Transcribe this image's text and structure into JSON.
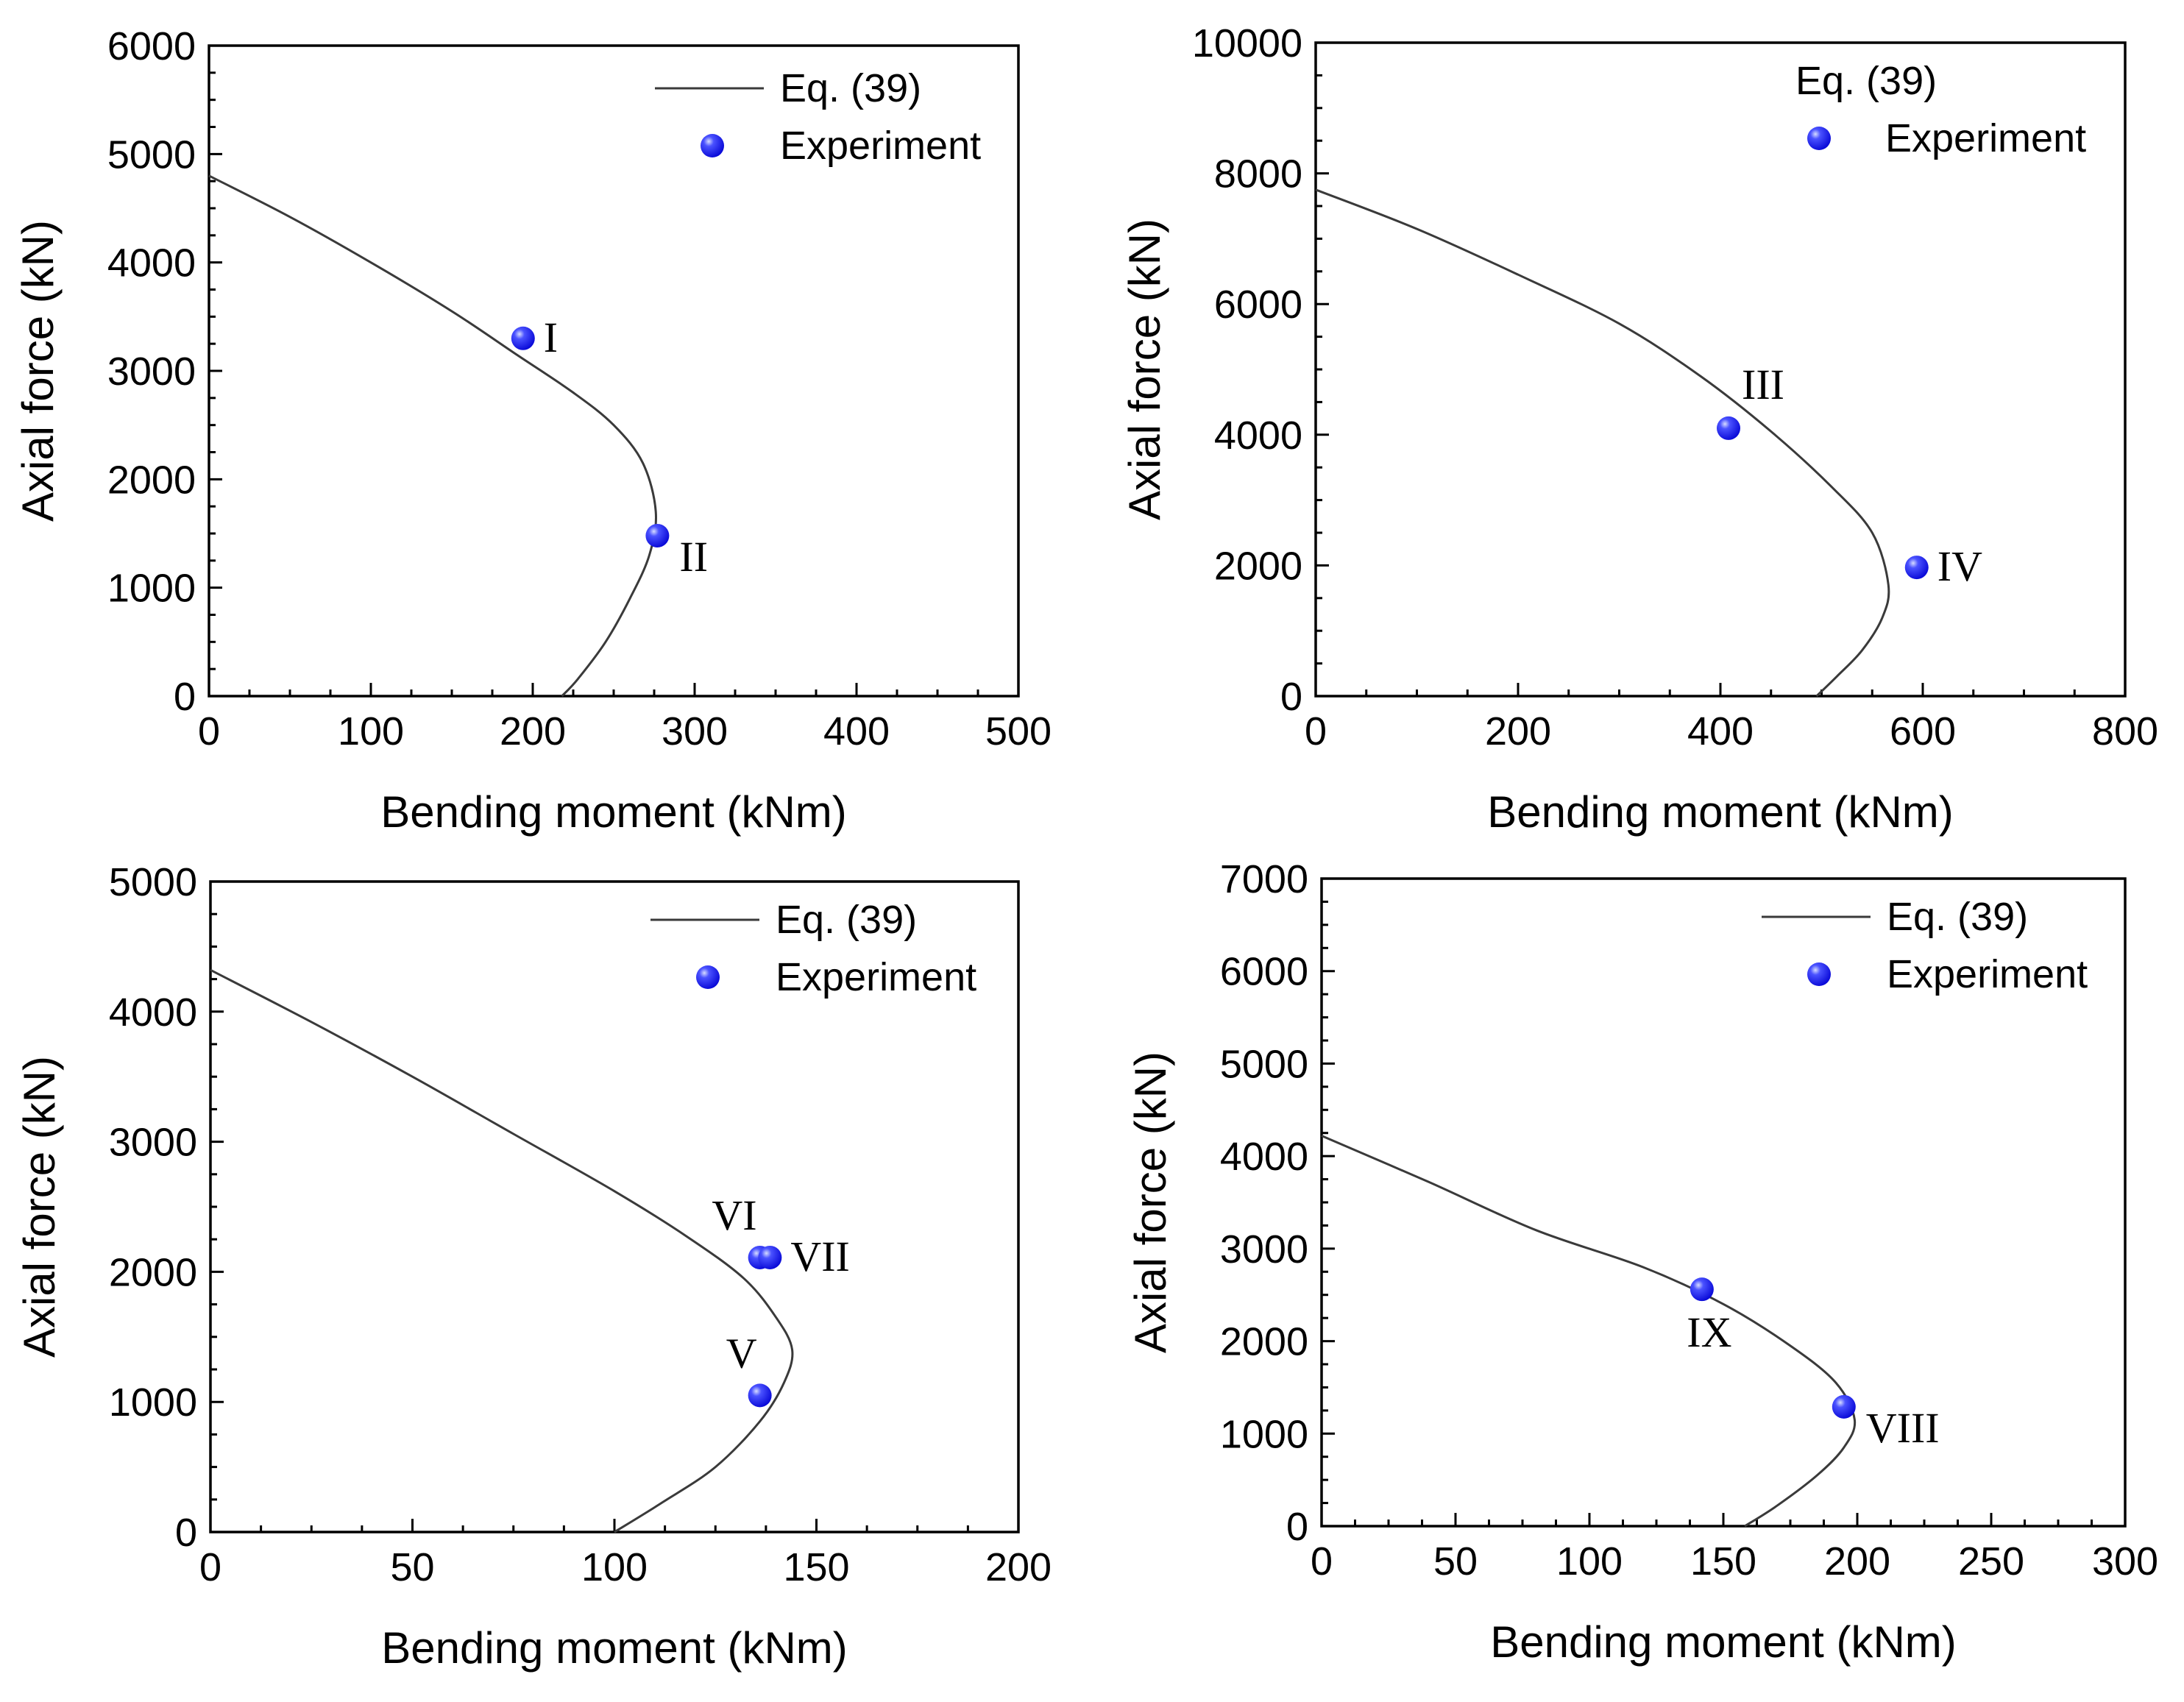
{
  "figure_title": "",
  "colors": {
    "curve": "#3a3a3a",
    "point": "#1a1aff",
    "point_highlight": "#a8b8ff",
    "axis": "#000000"
  },
  "chart_data": [
    {
      "type": "line",
      "title": "",
      "xlabel": "Bending moment (kNm)",
      "ylabel": "Axial force (kN)",
      "xlim": [
        0,
        500
      ],
      "ylim": [
        0,
        6000
      ],
      "xticks": [
        0,
        100,
        200,
        300,
        400,
        500
      ],
      "yticks": [
        0,
        1000,
        2000,
        3000,
        4000,
        5000,
        6000
      ],
      "x_minor_step": 25,
      "y_minor_step": 250,
      "legend": {
        "position": "top-right",
        "line_label": "Eq. (39)",
        "point_label": "Experiment"
      },
      "series": [
        {
          "name": "Eq. (39)",
          "kind": "line",
          "points": [
            [
              0,
              4800
            ],
            [
              50,
              4420
            ],
            [
              100,
              4000
            ],
            [
              150,
              3550
            ],
            [
              190,
              3150
            ],
            [
              225,
              2800
            ],
            [
              250,
              2500
            ],
            [
              268,
              2150
            ],
            [
              276,
              1700
            ],
            [
              272,
              1300
            ],
            [
              260,
              900
            ],
            [
              245,
              500
            ],
            [
              228,
              160
            ],
            [
              218,
              0
            ]
          ]
        },
        {
          "name": "Experiment",
          "kind": "scatter",
          "points": [
            {
              "x": 194,
              "y": 3300,
              "label": "I",
              "label_side": "right"
            },
            {
              "x": 277,
              "y": 1480,
              "label": "II",
              "label_side": "below-right"
            }
          ]
        }
      ]
    },
    {
      "type": "line",
      "title": "",
      "xlabel": "Bending moment (kNm)",
      "ylabel": "Axial force (kN)",
      "xlim": [
        0,
        800
      ],
      "ylim": [
        0,
        10000
      ],
      "xticks": [
        0,
        200,
        400,
        600,
        800
      ],
      "yticks": [
        0,
        2000,
        4000,
        6000,
        8000,
        10000
      ],
      "x_minor_step": 50,
      "y_minor_step": 500,
      "legend": {
        "position": "top-right",
        "line_label": "Eq. (39)",
        "point_label": "Experiment"
      },
      "series": [
        {
          "name": "Eq. (39)",
          "kind": "line",
          "points": [
            [
              0,
              7750
            ],
            [
              100,
              7150
            ],
            [
              200,
              6450
            ],
            [
              300,
              5700
            ],
            [
              380,
              4900
            ],
            [
              450,
              4050
            ],
            [
              510,
              3200
            ],
            [
              550,
              2500
            ],
            [
              566,
              1700
            ],
            [
              560,
              1200
            ],
            [
              540,
              700
            ],
            [
              515,
              300
            ],
            [
              495,
              0
            ]
          ]
        },
        {
          "name": "Experiment",
          "kind": "scatter",
          "points": [
            {
              "x": 408,
              "y": 4100,
              "label": "III",
              "label_side": "above-right"
            },
            {
              "x": 594,
              "y": 1970,
              "label": "IV",
              "label_side": "right"
            }
          ]
        }
      ]
    },
    {
      "type": "line",
      "title": "",
      "xlabel": "Bending moment (kNm)",
      "ylabel": "Axial force (kN)",
      "xlim": [
        0,
        200
      ],
      "ylim": [
        0,
        5000
      ],
      "xticks": [
        0,
        50,
        100,
        150,
        200
      ],
      "yticks": [
        0,
        1000,
        2000,
        3000,
        4000,
        5000
      ],
      "x_minor_step": 12.5,
      "y_minor_step": 250,
      "legend": {
        "position": "top-right",
        "line_label": "Eq. (39)",
        "point_label": "Experiment"
      },
      "series": [
        {
          "name": "Eq. (39)",
          "kind": "line",
          "points": [
            [
              0,
              4320
            ],
            [
              25,
              3920
            ],
            [
              50,
              3500
            ],
            [
              75,
              3060
            ],
            [
              100,
              2620
            ],
            [
              118,
              2270
            ],
            [
              132,
              1950
            ],
            [
              140,
              1650
            ],
            [
              144,
              1400
            ],
            [
              142,
              1150
            ],
            [
              136,
              850
            ],
            [
              125,
              500
            ],
            [
              112,
              230
            ],
            [
              100,
              0
            ]
          ]
        },
        {
          "name": "Experiment",
          "kind": "scatter",
          "points": [
            {
              "x": 136,
              "y": 2110,
              "label": "VI",
              "label_side": "above-left"
            },
            {
              "x": 138.5,
              "y": 2110,
              "label": "VII",
              "label_side": "right"
            },
            {
              "x": 136,
              "y": 1050,
              "label": "V",
              "label_side": "above-left"
            }
          ]
        }
      ]
    },
    {
      "type": "line",
      "title": "",
      "xlabel": "Bending moment (kNm)",
      "ylabel": "Axial force (kN)",
      "xlim": [
        0,
        300
      ],
      "ylim": [
        0,
        7000
      ],
      "xticks": [
        0,
        50,
        100,
        150,
        200,
        250,
        300
      ],
      "yticks": [
        0,
        1000,
        2000,
        3000,
        4000,
        5000,
        6000,
        7000
      ],
      "x_minor_step": 12.5,
      "y_minor_step": 250,
      "legend": {
        "position": "top-right",
        "line_label": "Eq. (39)",
        "point_label": "Experiment"
      },
      "series": [
        {
          "name": "Eq. (39)",
          "kind": "line",
          "points": [
            [
              0,
              4220
            ],
            [
              40,
              3720
            ],
            [
              80,
              3200
            ],
            [
              120,
              2800
            ],
            [
              150,
              2400
            ],
            [
              175,
              1950
            ],
            [
              192,
              1550
            ],
            [
              199,
              1150
            ],
            [
              195,
              850
            ],
            [
              185,
              550
            ],
            [
              170,
              220
            ],
            [
              158,
              0
            ]
          ]
        },
        {
          "name": "Experiment",
          "kind": "scatter",
          "points": [
            {
              "x": 142,
              "y": 2560,
              "label": "IX",
              "label_side": "below"
            },
            {
              "x": 195,
              "y": 1290,
              "label": "VIII",
              "label_side": "below-right"
            }
          ]
        }
      ]
    }
  ]
}
